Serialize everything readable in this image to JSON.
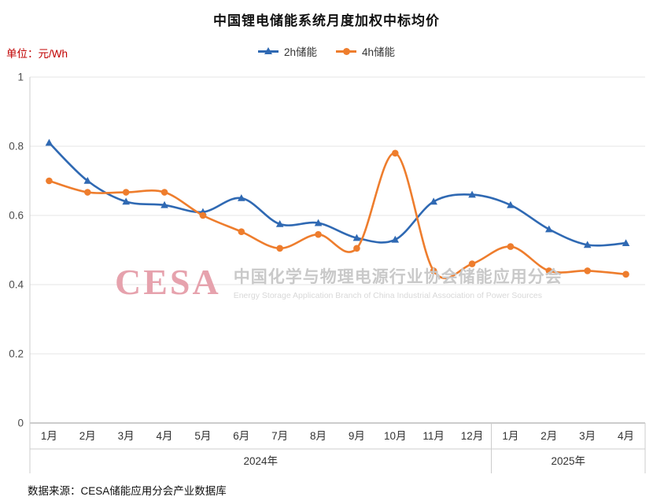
{
  "title": "中国锂电储能系统月度加权中标均价",
  "unit_label": "单位：元/Wh",
  "legend": [
    {
      "label": "2h储能",
      "color": "#2f69b3",
      "marker": "triangle"
    },
    {
      "label": "4h储能",
      "color": "#ee7d2d",
      "marker": "circle"
    }
  ],
  "watermark": {
    "logo": "CESA",
    "cn": "中国化学与物理电源行业协会储能应用分会",
    "en": "Energy Storage Application Branch of China Industrial Association of Power Sources"
  },
  "source": "数据来源：CESA储能应用分会产业数据库",
  "chart_data": {
    "type": "line",
    "categories": [
      "1月",
      "2月",
      "3月",
      "4月",
      "5月",
      "6月",
      "7月",
      "8月",
      "9月",
      "10月",
      "11月",
      "12月",
      "1月",
      "2月",
      "3月",
      "4月"
    ],
    "year_groups": [
      {
        "label": "2024年",
        "count": 12
      },
      {
        "label": "2025年",
        "count": 4
      }
    ],
    "series": [
      {
        "name": "2h储能",
        "color": "#2f69b3",
        "marker": "triangle",
        "smooth": true,
        "values": [
          0.81,
          0.7,
          0.64,
          0.63,
          0.61,
          0.65,
          0.575,
          0.578,
          0.535,
          0.53,
          0.64,
          0.66,
          0.63,
          0.56,
          0.515,
          0.52
        ]
      },
      {
        "name": "4h储能",
        "color": "#ee7d2d",
        "marker": "circle",
        "smooth": true,
        "values": [
          0.7,
          0.667,
          0.667,
          0.667,
          0.6,
          0.553,
          0.505,
          0.545,
          0.505,
          0.78,
          0.44,
          0.46,
          0.51,
          0.44,
          0.44,
          0.43
        ]
      }
    ],
    "ylim": [
      0,
      1
    ],
    "yticks": [
      0,
      0.2,
      0.4,
      0.6,
      0.8,
      1
    ],
    "grid": true,
    "legend_position": "top",
    "ylabel": "元/Wh"
  }
}
